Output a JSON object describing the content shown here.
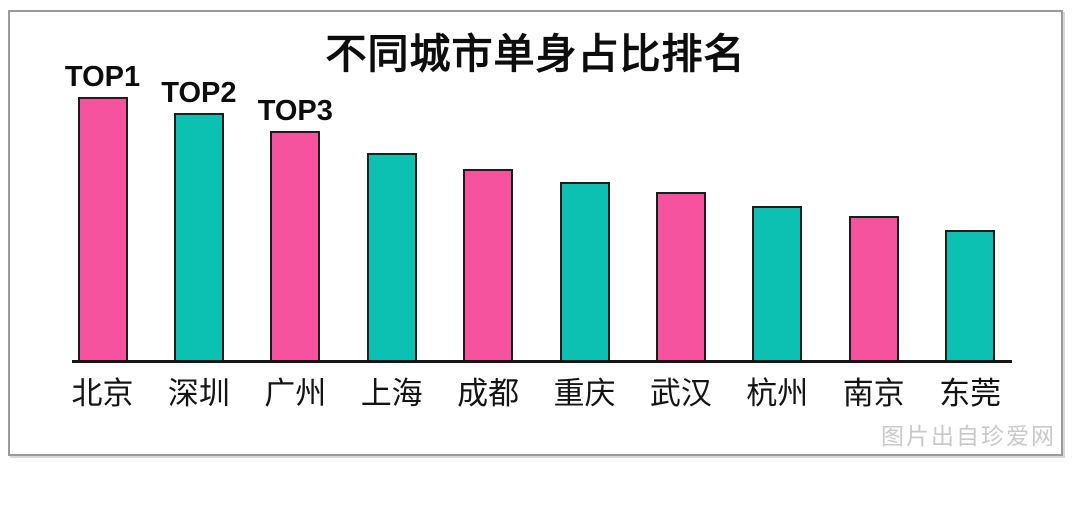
{
  "title": "不同城市单身占比排名",
  "watermark": "图片出自珍爱网",
  "colors": {
    "bar_pink": "#f6539e",
    "bar_teal": "#0cc0b2",
    "bar_border": "#1c1c1c",
    "axis": "#161616",
    "title_text": "#0d0d0d",
    "tick_text": "#141414",
    "frame_border": "#9a9a9a",
    "watermark_text": "#c9c9c9"
  },
  "chart_data": {
    "type": "bar",
    "title": "不同城市单身占比排名",
    "categories": [
      "北京",
      "深圳",
      "广州",
      "上海",
      "成都",
      "重庆",
      "武汉",
      "杭州",
      "南京",
      "东莞"
    ],
    "values": [
      100,
      94,
      87,
      79,
      73,
      68,
      64,
      59,
      55,
      50
    ],
    "value_scale": "relative, tallest bar = 100; no numeric y-axis shown",
    "annotations": [
      {
        "index": 0,
        "text": "TOP1"
      },
      {
        "index": 1,
        "text": "TOP2"
      },
      {
        "index": 2,
        "text": "TOP3"
      }
    ],
    "bar_color_pattern": [
      "#f6539e",
      "#0cc0b2"
    ],
    "xlabel": "",
    "ylabel": "",
    "ylim": [
      0,
      100
    ],
    "grid": false,
    "legend": false
  }
}
